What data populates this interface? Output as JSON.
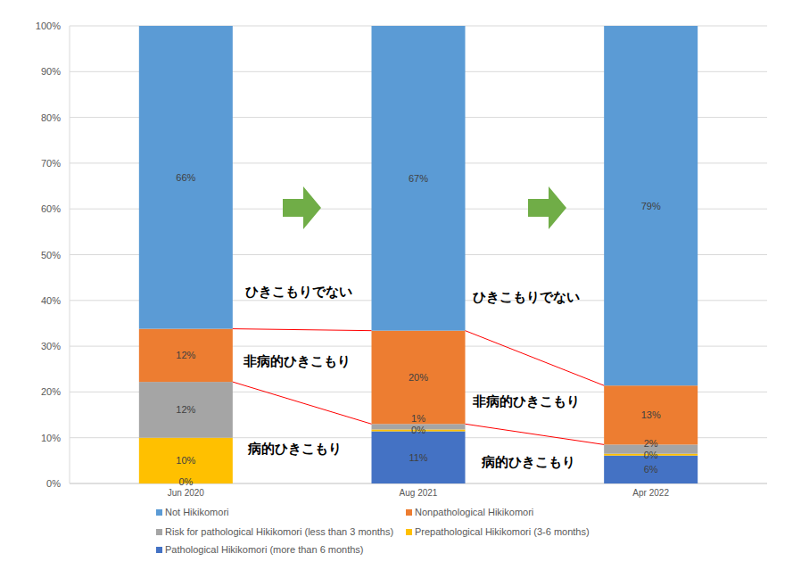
{
  "chart_data": {
    "type": "bar",
    "stacked": true,
    "grid": true,
    "data_labels": true,
    "legend": "bottom",
    "categories": [
      "Jun 2020",
      "Aug 2021",
      "Apr 2022"
    ],
    "ylim": [
      0,
      100
    ],
    "yticks": [
      {
        "value": 0,
        "label": "0%"
      },
      {
        "value": 10,
        "label": "10%"
      },
      {
        "value": 20,
        "label": "20%"
      },
      {
        "value": 30,
        "label": "30%"
      },
      {
        "value": 40,
        "label": "40%"
      },
      {
        "value": 50,
        "label": "50%"
      },
      {
        "value": 60,
        "label": "60%"
      },
      {
        "value": 70,
        "label": "70%"
      },
      {
        "value": 80,
        "label": "80%"
      },
      {
        "value": 90,
        "label": "90%"
      },
      {
        "value": 100,
        "label": "100%"
      }
    ],
    "series": [
      {
        "name": "Not Hikikomori",
        "color": "#5b9bd5",
        "values": [
          66.2,
          66.6,
          78.6
        ],
        "value_labels": [
          "66%",
          "67%",
          "79%"
        ]
      },
      {
        "name": "Nonpathological Hikikomori",
        "color": "#ed7d31",
        "values": [
          11.6,
          20.4,
          12.9
        ],
        "value_labels": [
          "12%",
          "20%",
          "13%"
        ]
      },
      {
        "name": "Risk for pathological Hikikomori (less than 3 months)",
        "color": "#a5a5a5",
        "values": [
          12.2,
          1.2,
          2.0
        ],
        "value_labels": [
          "12%",
          "1%",
          "2%"
        ]
      },
      {
        "name": "Prepathological Hikikomori (3-6 months)",
        "color": "#ffc000",
        "values": [
          10.0,
          0.4,
          0.4
        ],
        "value_labels": [
          "10%",
          "0%",
          "0%"
        ]
      },
      {
        "name": "Pathological Hikikomori (more than 6 months)",
        "color": "#4472c4",
        "values": [
          0,
          11.4,
          6.1
        ],
        "value_labels": [
          "0%",
          "11%",
          "6%"
        ]
      }
    ],
    "annotations": [
      "ひきこもりでない",
      "非病的ひきこもり",
      "病的ひきこもり",
      "ひきこもりでない",
      "非病的ひきこもり",
      "病的ひきこもり"
    ]
  }
}
